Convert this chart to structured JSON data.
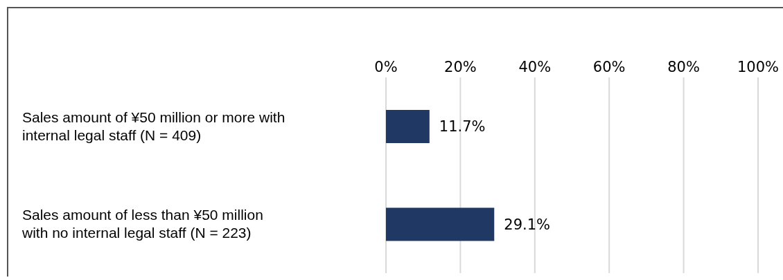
{
  "chart_data": {
    "type": "bar",
    "orientation": "horizontal",
    "categories": [
      "Sales amount of ¥50 million or more with internal legal staff (N = 409)",
      "Sales amount of less than ¥50 million with no internal legal staff (N = 223)"
    ],
    "series": [
      {
        "color": "#1f3864",
        "values": [
          11.7,
          29.1
        ],
        "value_labels": [
          "11.7%",
          "29.1%"
        ]
      }
    ],
    "xlim": [
      0,
      100
    ],
    "xticks": [
      {
        "value": 0,
        "label": "0%"
      },
      {
        "value": 20,
        "label": "20%"
      },
      {
        "value": 40,
        "label": "40%"
      },
      {
        "value": 60,
        "label": "60%"
      },
      {
        "value": 80,
        "label": "80%"
      },
      {
        "value": 100,
        "label": "100%"
      }
    ],
    "grid": "x",
    "legend": false
  }
}
